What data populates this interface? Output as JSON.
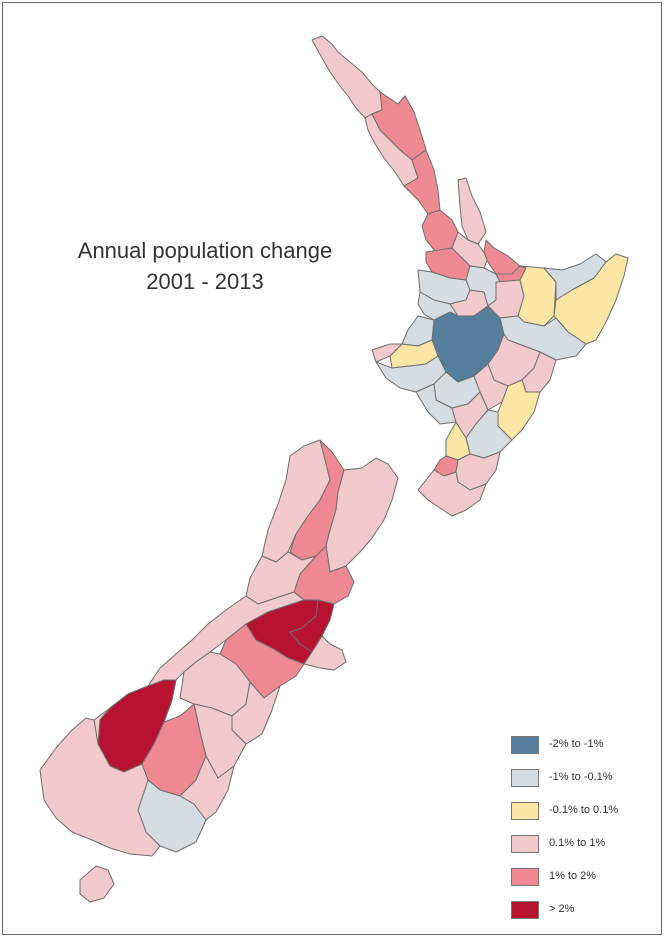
{
  "title": {
    "line1": "Annual population change",
    "line2": "2001 - 2013"
  },
  "colors": {
    "c_neg2_neg1": "#557f9c",
    "c_neg1_neg01": "#d5dde3",
    "c_neg01_01": "#fbe6a6",
    "c_01_1": "#f2c9cc",
    "c_1_2": "#f08a92",
    "c_gt2": "#b7122f",
    "border": "#6d6d6d"
  },
  "legend": [
    {
      "label": "-2% to -1%",
      "color": "#557f9c"
    },
    {
      "label": "-1% to -0.1%",
      "color": "#d5dde3"
    },
    {
      "label": "-0.1% to 0.1%",
      "color": "#fbe6a6"
    },
    {
      "label": "0.1% to 1%",
      "color": "#f2c9cc"
    },
    {
      "label": "1% to 2%",
      "color": "#f08a92"
    },
    {
      "label": "> 2%",
      "color": "#b7122f"
    }
  ]
}
